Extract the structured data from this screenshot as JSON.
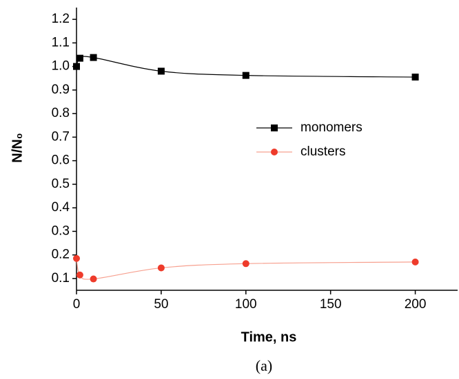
{
  "chart_data": {
    "type": "line",
    "xlabel": "Time, ns",
    "ylabel": "N/N₀",
    "caption": "(a)",
    "x": [
      0,
      2,
      10,
      50,
      100,
      200
    ],
    "series": [
      {
        "name": "monomers",
        "color": "#000000",
        "marker": "square",
        "values": [
          1.0,
          1.035,
          1.038,
          0.98,
          0.962,
          0.955
        ]
      },
      {
        "name": "clusters",
        "color": "#ee3b2b",
        "line_color": "#f7a08f",
        "marker": "circle",
        "values": [
          0.185,
          0.115,
          0.098,
          0.145,
          0.163,
          0.17
        ]
      }
    ],
    "xlim": [
      0,
      225
    ],
    "xticks": [
      0,
      50,
      100,
      150,
      200
    ],
    "ylim": [
      0.05,
      1.25
    ],
    "yticks": [
      0.1,
      0.2,
      0.3,
      0.4,
      0.5,
      0.6,
      0.7,
      0.8,
      0.9,
      {
        "value": 1,
        "label": "1.0"
      },
      1.1,
      1.2
    ],
    "legend": "right"
  }
}
